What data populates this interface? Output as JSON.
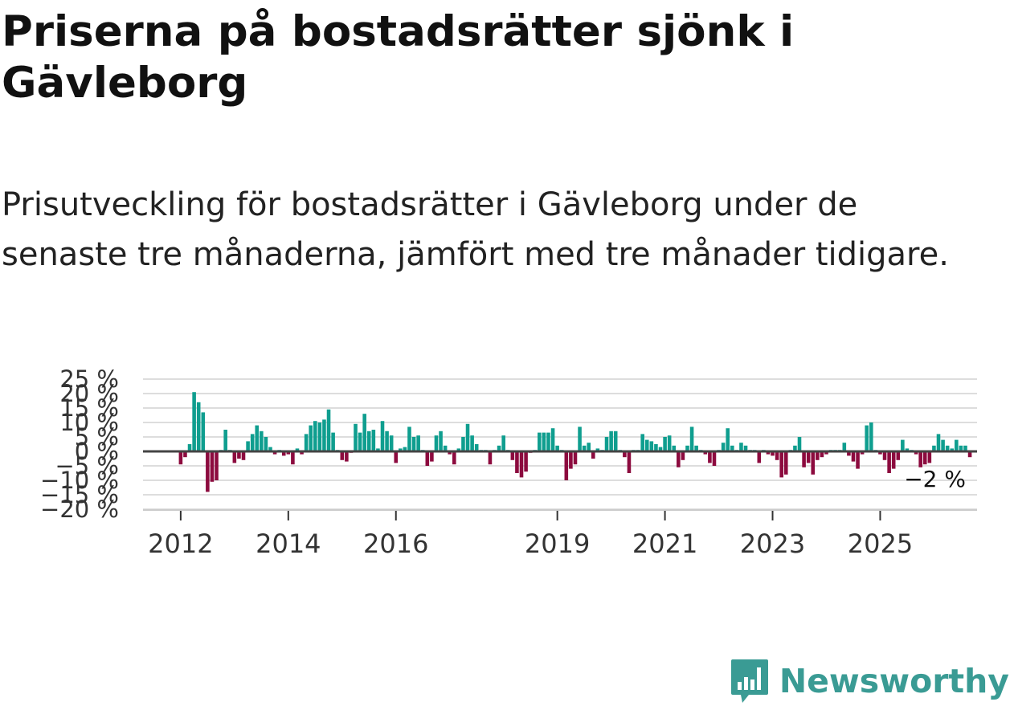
{
  "header": {
    "title": "Priserna på bostadsrätter sjönk i Gävleborg",
    "subtitle": "Prisutveckling för bostadsrätter i Gävleborg under de senaste tre månaderna, jämfört med tre månader tidigare."
  },
  "chart_data": {
    "type": "bar",
    "title": "Prisutveckling för bostadsrätter i Gävleborg",
    "xlabel": "",
    "ylabel": "",
    "x_range": [
      2011.3,
      2026.8
    ],
    "ylim": [
      -20,
      25
    ],
    "yticks": [
      {
        "value": 25,
        "label": "25 %"
      },
      {
        "value": 20,
        "label": "20 %"
      },
      {
        "value": 15,
        "label": "15 %"
      },
      {
        "value": 10,
        "label": "10 %"
      },
      {
        "value": 5,
        "label": "5 %"
      },
      {
        "value": 0,
        "label": "0 %"
      },
      {
        "value": -5,
        "label": "−5 %"
      },
      {
        "value": -10,
        "label": "−10 %"
      },
      {
        "value": -15,
        "label": "−15 %"
      },
      {
        "value": -20,
        "label": "−20 %"
      }
    ],
    "xticks": [
      {
        "value": 2012,
        "label": "2012"
      },
      {
        "value": 2014,
        "label": "2014"
      },
      {
        "value": 2016,
        "label": "2016"
      },
      {
        "value": 2019,
        "label": "2019"
      },
      {
        "value": 2021,
        "label": "2021"
      },
      {
        "value": 2023,
        "label": "2023"
      },
      {
        "value": 2025,
        "label": "2025"
      }
    ],
    "grid": true,
    "start": {
      "year": 2012,
      "month": 1
    },
    "monthly_values": [
      -4.5,
      -2,
      2.5,
      20.5,
      17,
      13.5,
      -14,
      -10.5,
      -10,
      0.5,
      7.5,
      0.5,
      -4,
      -2.5,
      -3,
      3.5,
      6,
      9,
      7,
      5,
      1.5,
      -1,
      0.5,
      -1.5,
      -1,
      -4.5,
      1,
      -1,
      6,
      9,
      10.5,
      10,
      11,
      14.5,
      6.5,
      0.5,
      -3,
      -3.5,
      -0.5,
      9.5,
      6.5,
      13,
      7,
      7.5,
      1,
      10.5,
      7,
      5.5,
      -4,
      1,
      1.5,
      8.5,
      5,
      5.5,
      0.5,
      -5,
      -3.5,
      5.5,
      7,
      2,
      -1,
      -4.5,
      1,
      5,
      9.5,
      5.5,
      2.5,
      0.5,
      0.5,
      -4.5,
      0.5,
      2,
      5.5,
      0.5,
      -3,
      -7.5,
      -9,
      -7,
      -0.5,
      0.5,
      6.5,
      6.5,
      6.5,
      8,
      2,
      0.5,
      -10,
      -6,
      -4.5,
      8.5,
      2,
      3,
      -2.5,
      1,
      0.5,
      5,
      7,
      7,
      0.5,
      -2,
      -7.5,
      0.5,
      0.5,
      6,
      4,
      3.5,
      2.5,
      1.5,
      5,
      5.5,
      2,
      -5.5,
      -3,
      2,
      8.5,
      2,
      0.5,
      -1,
      -4,
      -5,
      0.5,
      3,
      8,
      2,
      0.5,
      3,
      2,
      0.5,
      0.5,
      -4,
      0.5,
      -1,
      -1.5,
      -3,
      -9,
      -8,
      0.5,
      2,
      5,
      -5.5,
      -4,
      -8,
      -3,
      -2,
      -1,
      0.5,
      0.5,
      0.5,
      3,
      -1.5,
      -3.5,
      -6,
      -1,
      9,
      10,
      0.5,
      -1,
      -3,
      -7.5,
      -6,
      -3,
      4,
      1,
      0.5,
      -1,
      -5.5,
      -4.5,
      -4,
      2,
      6,
      4,
      2,
      1,
      4,
      2,
      2,
      -2
    ],
    "last_value": -2,
    "last_value_label": "−2 %",
    "colors": {
      "positive": "#0f9e8f",
      "negative": "#8c0a3e",
      "grid": "#dddddd",
      "zero_line": "#444444",
      "axis": "#cccccc"
    }
  },
  "brand": {
    "name": "Newsworthy",
    "icon": "newsworthy-logo-icon",
    "color": "#3a9b94"
  }
}
